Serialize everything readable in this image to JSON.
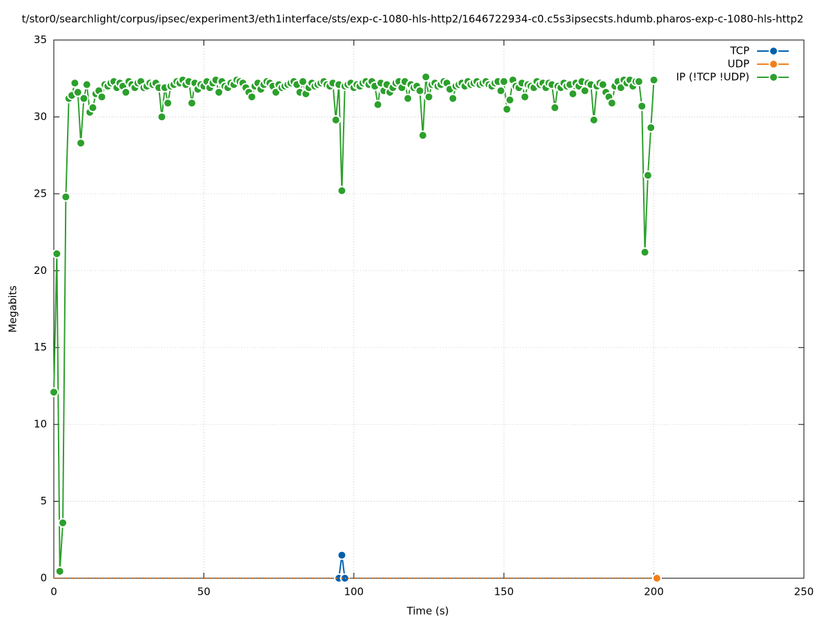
{
  "chart_data": {
    "type": "line",
    "title": "t/stor0/searchlight/corpus/ipsec/experiment3/eth1interface/sts/exp-c-1080-hls-http2/1646722934-c0.c5s3ipsecsts.hdumb.pharos-exp-c-1080-hls-http2",
    "x_label": "Time (s)",
    "y_label": "Megabits",
    "xlim": [
      0,
      250
    ],
    "xticks": [
      0,
      50,
      100,
      150,
      200,
      250
    ],
    "ylim": [
      0,
      35
    ],
    "yticks": [
      0,
      5,
      10,
      15,
      20,
      25,
      30,
      35
    ],
    "grid": true,
    "legend": "top right",
    "series": [
      {
        "name": "TCP",
        "color": "#0060ad",
        "x": [
          95,
          96,
          97
        ],
        "values": [
          0,
          1.5,
          0
        ]
      },
      {
        "name": "UDP",
        "color": "#f07f1a",
        "x": [
          0,
          201
        ],
        "values": [
          0,
          0
        ]
      },
      {
        "name": "IP (!TCP  !UDP)",
        "color": "#2ca02c",
        "x": [
          0,
          1,
          2,
          3,
          4,
          5,
          6,
          7,
          8,
          9,
          10,
          11,
          12,
          13,
          14,
          15,
          16,
          17,
          18,
          19,
          20,
          21,
          22,
          23,
          24,
          25,
          26,
          27,
          28,
          29,
          30,
          31,
          32,
          33,
          34,
          35,
          36,
          37,
          38,
          39,
          40,
          41,
          42,
          43,
          44,
          45,
          46,
          47,
          48,
          49,
          50,
          51,
          52,
          53,
          54,
          55,
          56,
          57,
          58,
          59,
          60,
          61,
          62,
          63,
          64,
          65,
          66,
          67,
          68,
          69,
          70,
          71,
          72,
          73,
          74,
          75,
          76,
          77,
          78,
          79,
          80,
          81,
          82,
          83,
          84,
          85,
          86,
          87,
          88,
          89,
          90,
          91,
          92,
          93,
          94,
          95,
          96,
          97,
          98,
          99,
          100,
          101,
          102,
          103,
          104,
          105,
          106,
          107,
          108,
          109,
          110,
          111,
          112,
          113,
          114,
          115,
          116,
          117,
          118,
          119,
          120,
          121,
          122,
          123,
          124,
          125,
          126,
          127,
          128,
          129,
          130,
          131,
          132,
          133,
          134,
          135,
          136,
          137,
          138,
          139,
          140,
          141,
          142,
          143,
          144,
          145,
          146,
          147,
          148,
          149,
          150,
          151,
          152,
          153,
          154,
          155,
          156,
          157,
          158,
          159,
          160,
          161,
          162,
          163,
          164,
          165,
          166,
          167,
          168,
          169,
          170,
          171,
          172,
          173,
          174,
          175,
          176,
          177,
          178,
          179,
          180,
          181,
          182,
          183,
          184,
          185,
          186,
          187,
          188,
          189,
          190,
          191,
          192,
          193,
          194,
          195,
          196,
          197,
          198,
          199,
          200
        ],
        "values": [
          12.1,
          21.1,
          0.45,
          3.6,
          24.8,
          31.2,
          31.4,
          32.2,
          31.6,
          28.3,
          31.2,
          32.1,
          30.3,
          30.6,
          31.5,
          31.7,
          31.3,
          32.1,
          32.0,
          32.2,
          32.3,
          31.9,
          32.2,
          32.0,
          31.6,
          32.3,
          32.1,
          31.9,
          32.2,
          32.3,
          31.9,
          32.0,
          32.2,
          32.1,
          32.2,
          31.9,
          30.0,
          31.9,
          30.9,
          32.0,
          32.1,
          32.3,
          32.2,
          32.4,
          32.1,
          32.3,
          30.9,
          32.2,
          31.8,
          32.1,
          32.0,
          32.3,
          31.9,
          32.2,
          32.4,
          31.6,
          32.3,
          32.0,
          31.9,
          32.2,
          32.1,
          32.4,
          32.3,
          32.2,
          31.9,
          31.6,
          31.3,
          32.0,
          32.2,
          31.8,
          32.1,
          32.3,
          32.2,
          32.0,
          31.6,
          32.1,
          31.9,
          32.0,
          32.1,
          32.2,
          32.3,
          32.1,
          31.6,
          32.3,
          31.5,
          31.9,
          32.2,
          32.0,
          32.1,
          32.2,
          32.3,
          32.1,
          32.0,
          32.2,
          29.8,
          32.1,
          25.2,
          32.0,
          32.1,
          32.2,
          31.9,
          32.1,
          32.0,
          32.2,
          32.3,
          32.1,
          32.3,
          32.0,
          30.8,
          32.2,
          31.7,
          32.1,
          31.6,
          31.9,
          32.2,
          32.3,
          31.9,
          32.3,
          31.2,
          32.1,
          31.9,
          32.0,
          31.7,
          28.8,
          32.6,
          31.3,
          32.1,
          32.2,
          32.0,
          32.1,
          32.3,
          32.2,
          31.8,
          31.2,
          32.0,
          32.1,
          32.2,
          32.0,
          32.3,
          32.1,
          32.2,
          32.3,
          32.1,
          32.2,
          32.3,
          32.1,
          32.0,
          32.2,
          32.3,
          31.7,
          32.3,
          30.5,
          31.1,
          32.4,
          32.0,
          31.9,
          32.2,
          31.3,
          32.1,
          32.0,
          31.9,
          32.3,
          32.1,
          32.2,
          31.9,
          32.2,
          32.1,
          30.6,
          32.0,
          31.9,
          32.2,
          32.0,
          32.1,
          31.5,
          32.2,
          32.0,
          32.3,
          31.7,
          32.2,
          32.1,
          29.8,
          32.0,
          32.2,
          32.1,
          31.6,
          31.3,
          30.9,
          32.0,
          32.3,
          31.9,
          32.4,
          32.2,
          32.4,
          32.0,
          32.3,
          32.3,
          30.7,
          21.2,
          26.2,
          29.3,
          32.4
        ]
      }
    ]
  }
}
